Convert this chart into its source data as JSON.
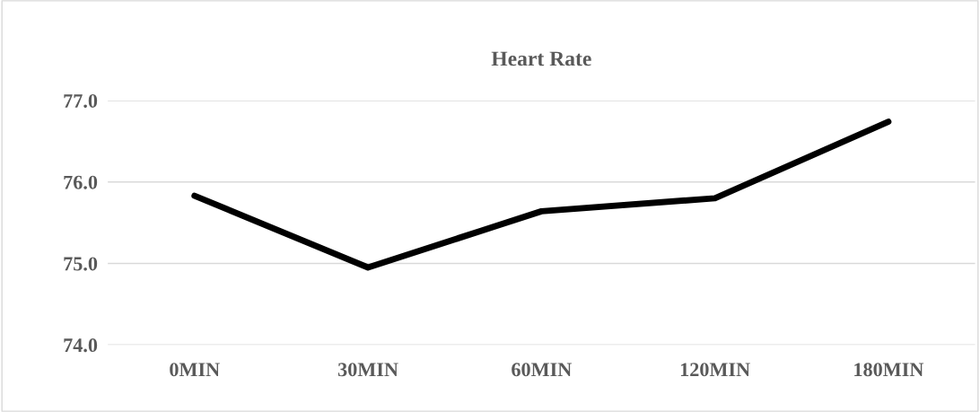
{
  "chart_data": {
    "type": "line",
    "title": "Heart Rate",
    "categories": [
      "0MIN",
      "30MIN",
      "60MIN",
      "120MIN",
      "180MIN"
    ],
    "series": [
      {
        "color": "#000000",
        "values": [
          75.83,
          74.95,
          75.64,
          75.8,
          76.74
        ]
      }
    ],
    "ylim": [
      74,
      77
    ],
    "yticks": [
      {
        "value": 74,
        "label": "74.0"
      },
      {
        "value": 75,
        "label": "75.0"
      },
      {
        "value": 76,
        "label": "76.0"
      },
      {
        "value": 77,
        "label": "77.0"
      }
    ],
    "grid": "y",
    "marker": "none",
    "line_style": "solid"
  }
}
